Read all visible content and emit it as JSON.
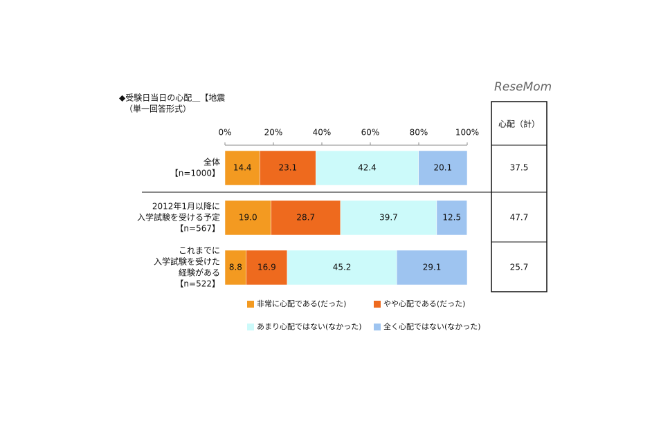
{
  "chart_data": {
    "type": "stacked_bar_horizontal",
    "title": "◆受験日当日の心配＿【地震",
    "subtitle": "（単一回答形式）",
    "watermark": "ReseMom",
    "categories": [
      [
        "全体",
        "【n=1000】"
      ],
      [
        "2012年1月以降に",
        "入学試験を受ける予定",
        "【n=567】"
      ],
      [
        "これまでに",
        "入学試験を受けた",
        "経験がある",
        "【n=522】"
      ]
    ],
    "series": [
      {
        "name": "非常に心配である(だった)",
        "color": "#f39a21",
        "values": [
          14.4,
          19.0,
          8.8
        ],
        "value_labels": [
          "14.4",
          "19.0",
          "8.8"
        ]
      },
      {
        "name": "やや心配である(だった)",
        "color": "#ee6a1e",
        "values": [
          23.1,
          28.7,
          16.9
        ]
      },
      {
        "name": "あまり心配ではない(なかった)",
        "color": "#ccfafa",
        "values": [
          42.4,
          39.7,
          45.2
        ]
      },
      {
        "name": "全く心配ではない(なかった)",
        "color": "#9ec4f0",
        "values": [
          20.1,
          12.5,
          29.1
        ]
      }
    ],
    "xlim": [
      0,
      100
    ],
    "xticks": [
      {
        "value": 0,
        "label": "0%"
      },
      {
        "value": 20,
        "label": "20%"
      },
      {
        "value": 40,
        "label": "40%"
      },
      {
        "value": 60,
        "label": "60%"
      },
      {
        "value": 80,
        "label": "80%"
      },
      {
        "value": 100,
        "label": "100%"
      }
    ],
    "total_column": {
      "header": "心配（計）",
      "values": [
        37.5,
        47.7,
        25.7
      ]
    }
  }
}
